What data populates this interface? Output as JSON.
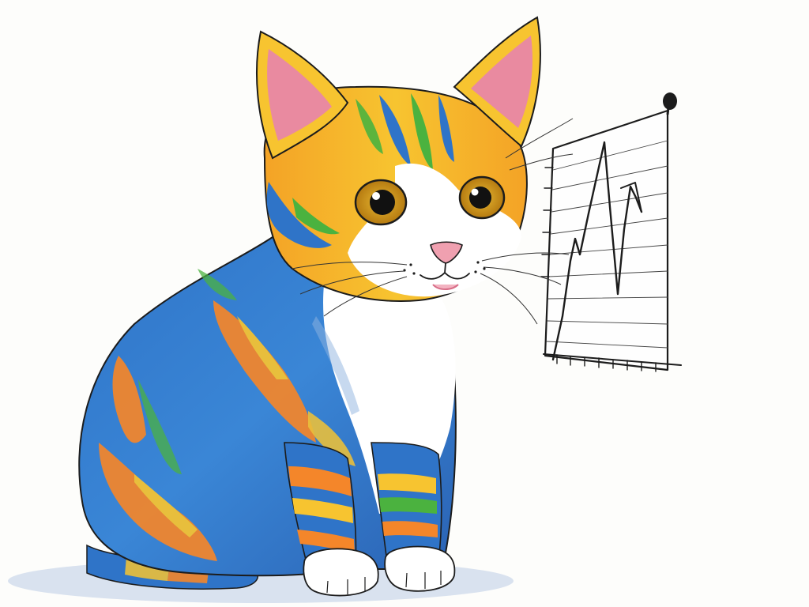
{
  "colors": {
    "paper": "#fdfdfb",
    "ink": "#1c1c1c",
    "blue": "#2f74c8",
    "orange": "#f4862a",
    "yellow": "#f7c430",
    "green": "#4bb23f",
    "white_fur": "#ffffff",
    "ear_pink": "#e98aa0",
    "nose_pink": "#f0a0b0",
    "eye_amber": "#d9a21f",
    "shadow": "#c9d6ea"
  },
  "icons": {
    "cat": "cat-drawing",
    "chart": "line-chart-drawing",
    "pin": "pin-icon"
  }
}
